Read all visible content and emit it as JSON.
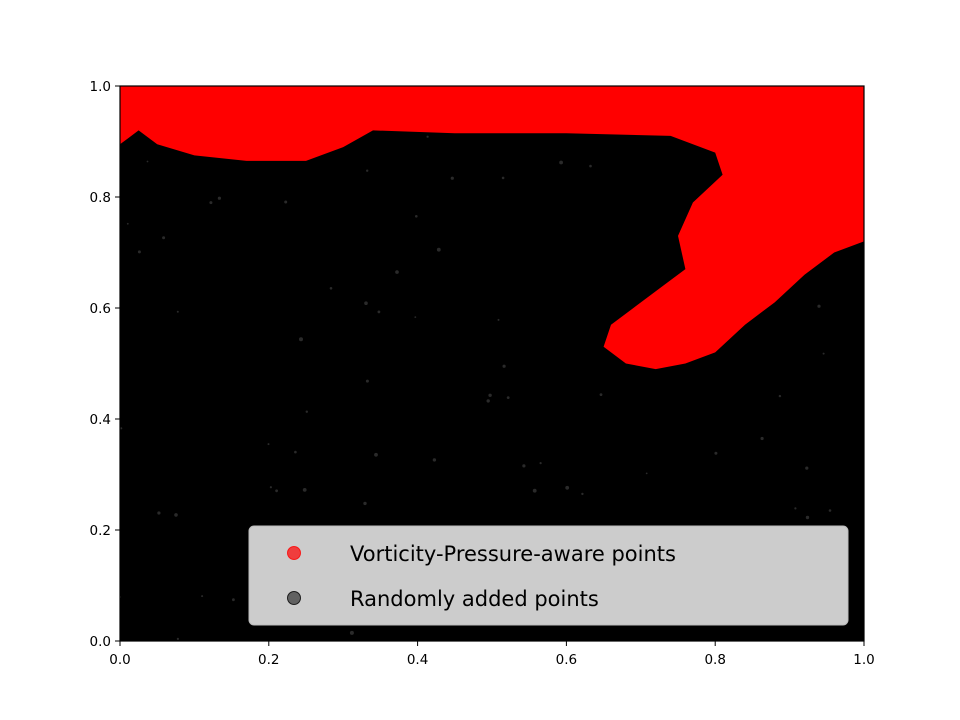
{
  "chart_data": {
    "type": "scatter",
    "title": "",
    "xlabel": "",
    "ylabel": "",
    "xlim": [
      0.0,
      1.0
    ],
    "ylim": [
      0.0,
      1.0
    ],
    "grid": false,
    "legend_placement": "lower-right",
    "x_ticks": [
      "0.0",
      "0.2",
      "0.4",
      "0.6",
      "0.8",
      "1.0"
    ],
    "y_ticks": [
      "0.0",
      "0.2",
      "0.4",
      "0.6",
      "0.8",
      "1.0"
    ],
    "series": [
      {
        "name": "Vorticity-Pressure-aware points",
        "color": "#ff0000",
        "region_description": "dense cluster along the top edge and a diagonal band toward the right",
        "region_boundary": [
          [
            0.0,
            1.0
          ],
          [
            1.0,
            1.0
          ],
          [
            1.0,
            0.72
          ],
          [
            0.96,
            0.7
          ],
          [
            0.92,
            0.66
          ],
          [
            0.88,
            0.61
          ],
          [
            0.84,
            0.57
          ],
          [
            0.8,
            0.52
          ],
          [
            0.76,
            0.5
          ],
          [
            0.72,
            0.49
          ],
          [
            0.68,
            0.5
          ],
          [
            0.65,
            0.53
          ],
          [
            0.66,
            0.57
          ],
          [
            0.69,
            0.6
          ],
          [
            0.73,
            0.64
          ],
          [
            0.76,
            0.67
          ],
          [
            0.75,
            0.73
          ],
          [
            0.77,
            0.79
          ],
          [
            0.81,
            0.84
          ],
          [
            0.8,
            0.88
          ],
          [
            0.74,
            0.91
          ],
          [
            0.6,
            0.915
          ],
          [
            0.45,
            0.915
          ],
          [
            0.34,
            0.92
          ],
          [
            0.3,
            0.89
          ],
          [
            0.25,
            0.865
          ],
          [
            0.17,
            0.865
          ],
          [
            0.1,
            0.875
          ],
          [
            0.05,
            0.895
          ],
          [
            0.025,
            0.92
          ],
          [
            0.0,
            0.895
          ]
        ]
      },
      {
        "name": "Randomly added points",
        "color": "#000000",
        "region_description": "dense uniform random points filling the remaining domain"
      }
    ]
  }
}
